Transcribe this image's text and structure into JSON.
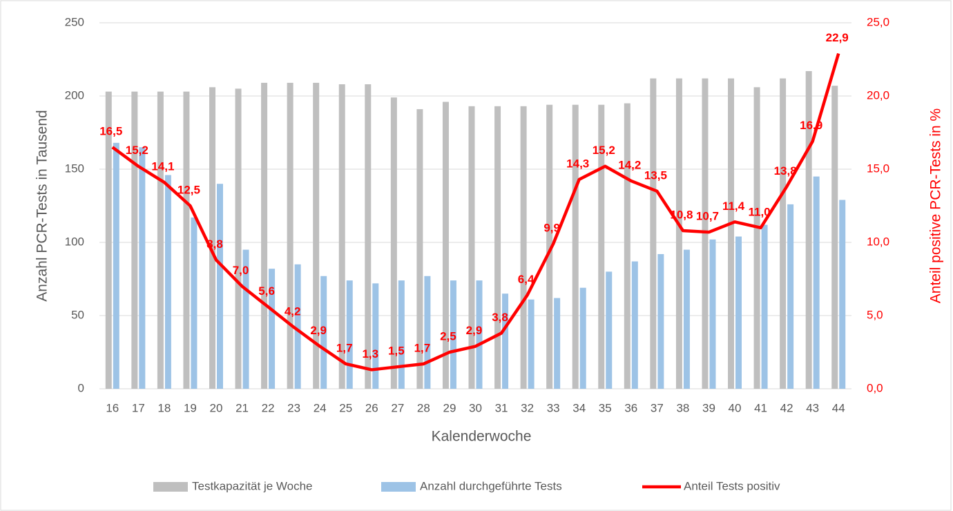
{
  "chart_data": {
    "type": "bar-line",
    "x_label": "Kalenderwoche",
    "y_label": "Anzahl PCR-Tests in Tausend",
    "y2_label": "Anteil positive PCR-Tests in %",
    "categories": [
      "16",
      "17",
      "18",
      "19",
      "20",
      "21",
      "22",
      "23",
      "24",
      "25",
      "26",
      "27",
      "28",
      "29",
      "30",
      "31",
      "32",
      "33",
      "34",
      "35",
      "36",
      "37",
      "38",
      "39",
      "40",
      "41",
      "42",
      "43",
      "44"
    ],
    "series": [
      {
        "name": "Testkapazität je Woche",
        "type": "bar",
        "color": "#bfbfbf",
        "values": [
          203,
          203,
          203,
          203,
          206,
          205,
          209,
          209,
          209,
          208,
          208,
          199,
          191,
          196,
          193,
          193,
          193,
          194,
          194,
          194,
          195,
          212,
          212,
          212,
          212,
          206,
          212,
          217,
          207
        ]
      },
      {
        "name": "Anzahl durchgeführte Tests",
        "type": "bar",
        "color": "#9dc3e6",
        "values": [
          168,
          165,
          146,
          117,
          140,
          95,
          82,
          85,
          77,
          74,
          72,
          74,
          77,
          74,
          74,
          65,
          61,
          62,
          69,
          80,
          87,
          92,
          95,
          102,
          104,
          112,
          126,
          145,
          129
        ]
      },
      {
        "name": "Anteil Tests positiv",
        "type": "line",
        "axis": "y2",
        "color": "#ff0000",
        "values": [
          16.5,
          15.2,
          14.1,
          12.5,
          8.8,
          7.0,
          5.6,
          4.2,
          2.9,
          1.7,
          1.3,
          1.5,
          1.7,
          2.5,
          2.9,
          3.8,
          6.4,
          9.9,
          14.3,
          15.2,
          14.2,
          13.5,
          10.8,
          10.7,
          11.4,
          11.0,
          13.8,
          16.9,
          22.9
        ],
        "value_labels": [
          "16,5",
          "15,2",
          "14,1",
          "12,5",
          "8,8",
          "7,0",
          "5,6",
          "4,2",
          "2,9",
          "1,7",
          "1,3",
          "1,5",
          "1,7",
          "2,5",
          "2,9",
          "3,8",
          "6,4",
          "9,9",
          "14,3",
          "15,2",
          "14,2",
          "13,5",
          "10,8",
          "10,7",
          "11,4",
          "11,0",
          "13,8",
          "16,9",
          "22,9"
        ]
      }
    ],
    "ylim": [
      0,
      250
    ],
    "yticks": [
      0,
      50,
      100,
      150,
      200,
      250
    ],
    "y2lim": [
      0,
      25
    ],
    "y2ticks": [
      {
        "value": 0,
        "label": "0,0"
      },
      {
        "value": 5,
        "label": "5,0"
      },
      {
        "value": 10,
        "label": "10,0"
      },
      {
        "value": 15,
        "label": "15,0"
      },
      {
        "value": 20,
        "label": "20,0"
      },
      {
        "value": 25,
        "label": "25,0"
      }
    ],
    "grid": true,
    "legend": "bottom"
  }
}
